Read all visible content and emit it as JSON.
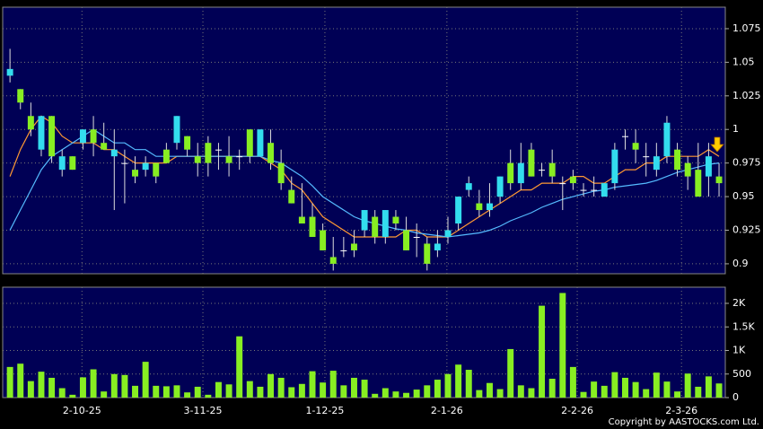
{
  "chart_data": [
    {
      "type": "candlestick",
      "up_color": "#33ddee",
      "down_color": "#88ee22",
      "grid": true,
      "xlim": [
        -0.7,
        68.6
      ],
      "ylim": [
        0.8926,
        1.091
      ],
      "yticks": [
        0.9,
        0.925,
        0.95,
        0.975,
        1,
        1.025,
        1.05,
        1.075
      ],
      "open": [
        1.04,
        1.03,
        1.01,
        0.985,
        1.01,
        0.97,
        0.98,
        0.99,
        1.0,
        0.99,
        0.98,
        0.975,
        0.97,
        0.97,
        0.975,
        0.985,
        0.99,
        0.995,
        0.98,
        0.99,
        0.985,
        0.98,
        0.98,
        1.0,
        0.98,
        0.99,
        0.975,
        0.955,
        0.935,
        0.935,
        0.925,
        0.905,
        0.91,
        0.915,
        0.925,
        0.935,
        0.92,
        0.935,
        0.925,
        0.92,
        0.915,
        0.91,
        0.92,
        0.93,
        0.955,
        0.945,
        0.94,
        0.95,
        0.975,
        0.96,
        0.985,
        0.97,
        0.975,
        0.96,
        0.965,
        0.955,
        0.955,
        0.95,
        0.96,
        0.995,
        0.99,
        0.98,
        0.97,
        0.98,
        0.985,
        0.975,
        0.97,
        0.965,
        0.965
      ],
      "high": [
        1.06,
        1.03,
        1.02,
        1.01,
        1.01,
        0.985,
        0.98,
        1.0,
        1.01,
        1.005,
        1.0,
        0.985,
        0.98,
        0.98,
        0.975,
        0.99,
        1.01,
        0.995,
        0.99,
        0.995,
        0.99,
        0.995,
        0.985,
        1.0,
        1.0,
        1.0,
        0.985,
        0.965,
        0.96,
        0.945,
        0.93,
        0.92,
        0.92,
        0.925,
        0.94,
        0.94,
        0.94,
        0.94,
        0.935,
        0.93,
        0.92,
        0.925,
        0.935,
        0.95,
        0.965,
        0.955,
        0.96,
        0.965,
        0.985,
        0.99,
        0.99,
        0.975,
        0.985,
        0.965,
        0.97,
        0.96,
        0.965,
        0.96,
        0.99,
        1.0,
        1.0,
        0.99,
        0.99,
        1.01,
        0.99,
        0.98,
        0.99,
        0.99,
        0.975
      ],
      "low": [
        1.035,
        1.015,
        0.995,
        0.98,
        0.975,
        0.965,
        0.97,
        0.985,
        0.98,
        0.985,
        0.94,
        0.945,
        0.96,
        0.965,
        0.96,
        0.975,
        0.985,
        0.98,
        0.965,
        0.965,
        0.97,
        0.965,
        0.97,
        0.975,
        0.98,
        0.97,
        0.955,
        0.945,
        0.93,
        0.92,
        0.91,
        0.895,
        0.905,
        0.905,
        0.92,
        0.915,
        0.915,
        0.925,
        0.91,
        0.905,
        0.895,
        0.905,
        0.915,
        0.925,
        0.95,
        0.935,
        0.935,
        0.945,
        0.955,
        0.955,
        0.965,
        0.965,
        0.96,
        0.94,
        0.955,
        0.95,
        0.95,
        0.95,
        0.955,
        0.985,
        0.975,
        0.965,
        0.965,
        0.975,
        0.965,
        0.955,
        0.95,
        0.95,
        0.95
      ],
      "close": [
        1.045,
        1.02,
        1.0,
        1.01,
        0.98,
        0.98,
        0.97,
        1.0,
        0.99,
        0.985,
        0.985,
        0.975,
        0.965,
        0.975,
        0.965,
        0.975,
        1.01,
        0.985,
        0.975,
        0.975,
        0.985,
        0.975,
        0.98,
        0.98,
        1.0,
        0.975,
        0.96,
        0.945,
        0.93,
        0.92,
        0.91,
        0.9,
        0.91,
        0.91,
        0.94,
        0.92,
        0.94,
        0.93,
        0.91,
        0.92,
        0.9,
        0.915,
        0.925,
        0.95,
        0.96,
        0.94,
        0.945,
        0.965,
        0.96,
        0.975,
        0.965,
        0.97,
        0.965,
        0.96,
        0.96,
        0.955,
        0.955,
        0.96,
        0.985,
        0.995,
        0.985,
        0.98,
        0.98,
        1.005,
        0.97,
        0.965,
        0.95,
        0.98,
        0.96
      ],
      "series": [
        {
          "color": "#ff9933",
          "values": [
            0.965,
            0.985,
            1.0,
            1.01,
            1.005,
            0.995,
            0.99,
            0.99,
            0.99,
            0.985,
            0.985,
            0.98,
            0.975,
            0.975,
            0.975,
            0.975,
            0.98,
            0.98,
            0.98,
            0.98,
            0.98,
            0.98,
            0.98,
            0.98,
            0.98,
            0.975,
            0.97,
            0.96,
            0.955,
            0.945,
            0.935,
            0.93,
            0.925,
            0.92,
            0.92,
            0.92,
            0.92,
            0.92,
            0.925,
            0.925,
            0.92,
            0.92,
            0.92,
            0.925,
            0.93,
            0.935,
            0.94,
            0.945,
            0.95,
            0.955,
            0.955,
            0.96,
            0.96,
            0.96,
            0.965,
            0.965,
            0.96,
            0.96,
            0.965,
            0.97,
            0.97,
            0.975,
            0.975,
            0.98,
            0.98,
            0.98,
            0.98,
            0.985,
            0.98
          ]
        },
        {
          "color": "#55bbff",
          "values": [
            0.925,
            0.94,
            0.955,
            0.97,
            0.98,
            0.985,
            0.99,
            0.995,
            1.0,
            0.995,
            0.99,
            0.99,
            0.985,
            0.985,
            0.98,
            0.98,
            0.98,
            0.98,
            0.98,
            0.98,
            0.98,
            0.98,
            0.98,
            0.98,
            0.98,
            0.977,
            0.975,
            0.97,
            0.965,
            0.958,
            0.95,
            0.945,
            0.94,
            0.935,
            0.932,
            0.93,
            0.928,
            0.926,
            0.925,
            0.923,
            0.922,
            0.921,
            0.92,
            0.921,
            0.922,
            0.923,
            0.925,
            0.928,
            0.932,
            0.935,
            0.938,
            0.942,
            0.945,
            0.948,
            0.95,
            0.952,
            0.954,
            0.955,
            0.957,
            0.958,
            0.959,
            0.96,
            0.962,
            0.965,
            0.968,
            0.97,
            0.972,
            0.974,
            0.975
          ]
        }
      ]
    },
    {
      "type": "bar",
      "color": "#88ee22",
      "grid": true,
      "xlim": [
        -0.7,
        68.6
      ],
      "ylim": [
        0,
        2343
      ],
      "yticks": [
        0,
        500,
        {
          "value": 1000,
          "label": "1K"
        },
        {
          "value": 1500,
          "label": "1.5K"
        },
        {
          "value": 2000,
          "label": "2K"
        }
      ],
      "xticks": [
        {
          "value": 6.9,
          "label": "2-10-25"
        },
        {
          "value": 18.5,
          "label": "3-11-25"
        },
        {
          "value": 30.2,
          "label": "1-12-25"
        },
        {
          "value": 41.9,
          "label": "2-1-26"
        },
        {
          "value": 54.4,
          "label": "2-2-26"
        },
        {
          "value": 64.4,
          "label": "2-3-26"
        }
      ],
      "values": [
        650,
        720,
        350,
        550,
        420,
        200,
        60,
        430,
        600,
        130,
        500,
        480,
        250,
        760,
        250,
        240,
        260,
        110,
        230,
        60,
        330,
        280,
        1300,
        350,
        230,
        500,
        420,
        220,
        290,
        560,
        320,
        570,
        260,
        420,
        380,
        80,
        200,
        130,
        100,
        170,
        260,
        380,
        500,
        700,
        590,
        160,
        310,
        180,
        1030,
        260,
        200,
        1950,
        400,
        2220,
        650,
        120,
        340,
        250,
        540,
        420,
        330,
        180,
        530,
        340,
        130,
        510,
        230,
        450,
        300
      ]
    }
  ],
  "footer": "Copyright by AASTOCKS.com Ltd."
}
